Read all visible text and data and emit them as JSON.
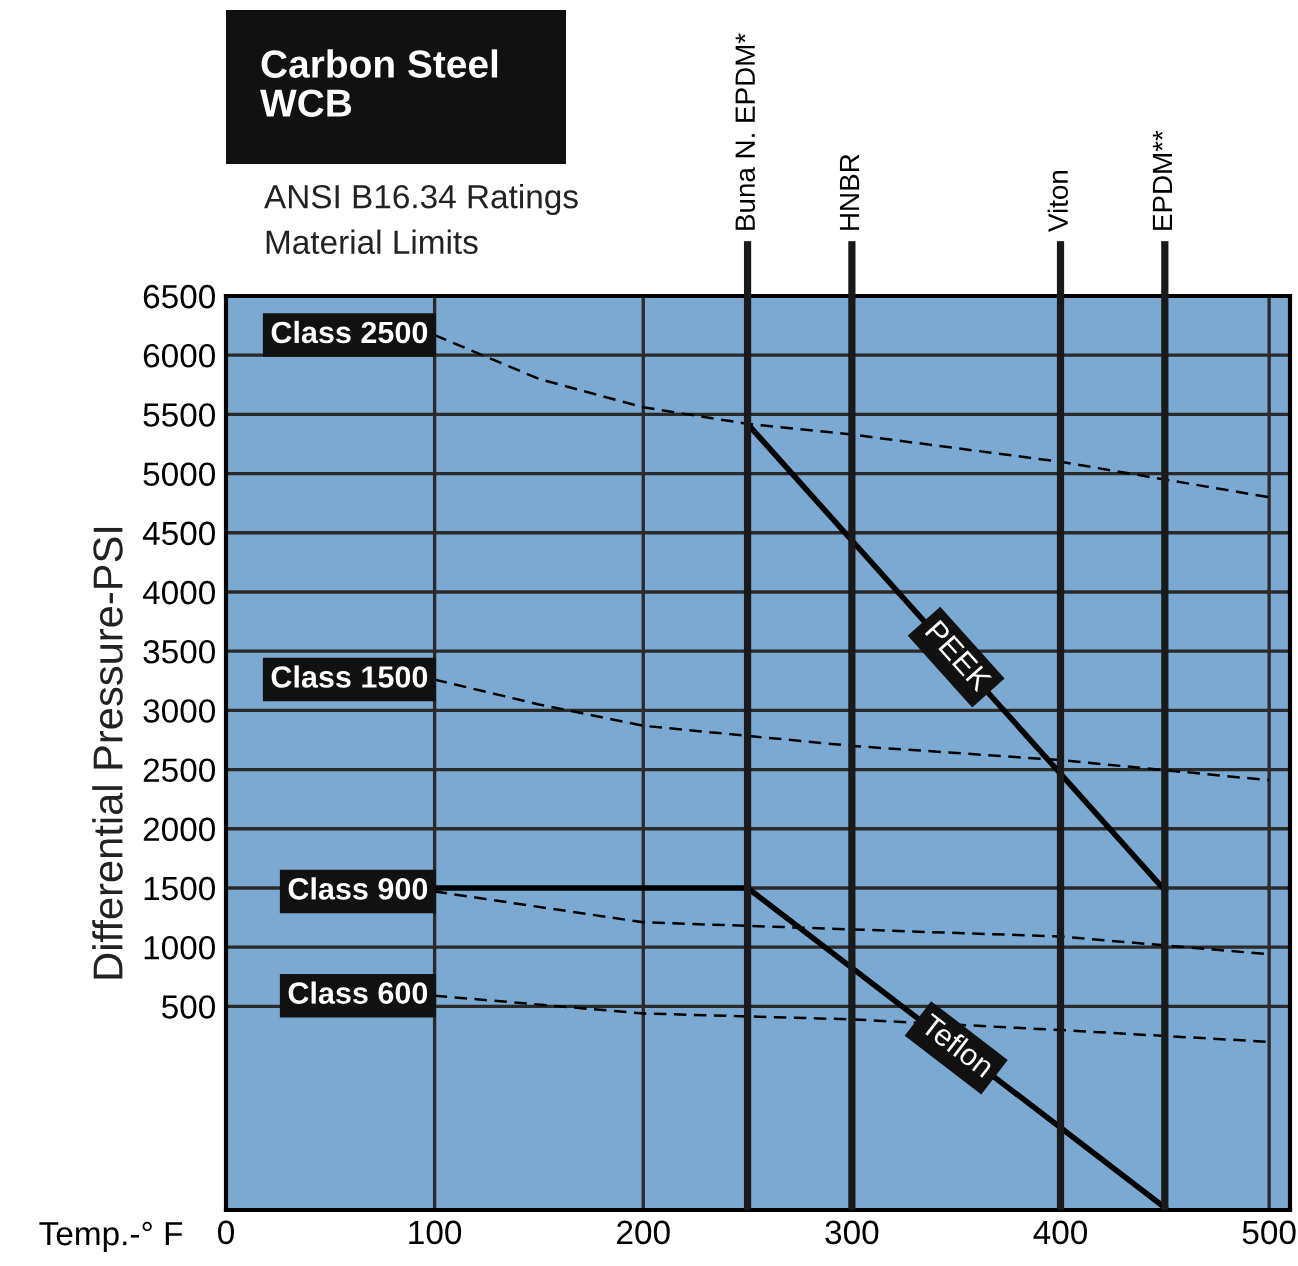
{
  "chart_data": {
    "type": "line",
    "title": "Carbon Steel\nWCB",
    "subtitle": "ANSI B16.34 Ratings\nMaterial Limits",
    "xlabel": "Temp.-° F",
    "ylabel": "Differential Pressure-PSI",
    "xlim": [
      0,
      510
    ],
    "xticks": [
      0,
      100,
      200,
      300,
      400,
      500
    ],
    "ylim": [
      -1220,
      6500
    ],
    "yticks": [
      500,
      1000,
      1500,
      2000,
      2500,
      3000,
      3500,
      4000,
      4500,
      5000,
      5500,
      6000,
      6500
    ],
    "grid": true,
    "series": [
      {
        "name": "Class 2500",
        "color": "#000000",
        "line_style": "dashed",
        "x": [
          100,
          150,
          200,
          250,
          300,
          400,
          450,
          500
        ],
        "values": [
          6170,
          5800,
          5560,
          5420,
          5330,
          5100,
          4950,
          4800
        ]
      },
      {
        "name": "Class 1500",
        "color": "#000000",
        "line_style": "dashed",
        "x": [
          100,
          150,
          200,
          300,
          400,
          500
        ],
        "values": [
          3260,
          3050,
          2870,
          2700,
          2580,
          2410
        ]
      },
      {
        "name": "Class 900",
        "color": "#000000",
        "line_style": "dashed",
        "x": [
          100,
          200,
          300,
          400,
          500
        ],
        "values": [
          1470,
          1210,
          1150,
          1090,
          940
        ]
      },
      {
        "name": "Class 600",
        "color": "#000000",
        "line_style": "dashed",
        "x": [
          100,
          200,
          300,
          400,
          500
        ],
        "values": [
          590,
          440,
          390,
          300,
          200
        ]
      },
      {
        "name": "PEEK",
        "color": "#000000",
        "line_style": "solid",
        "x": [
          250,
          450
        ],
        "values": [
          5420,
          1480
        ]
      },
      {
        "name": "Teflon",
        "color": "#000000",
        "line_style": "solid",
        "x": [
          100,
          250,
          450
        ],
        "values": [
          1500,
          1500,
          -1200
        ]
      }
    ],
    "ref_lines": [
      {
        "axis": "x",
        "value": 250,
        "label": "Buna N. EPDM*"
      },
      {
        "axis": "x",
        "value": 300,
        "label": "HNBR"
      },
      {
        "axis": "x",
        "value": 400,
        "label": "Viton"
      },
      {
        "axis": "x",
        "value": 450,
        "label": "EPDM**"
      }
    ]
  }
}
